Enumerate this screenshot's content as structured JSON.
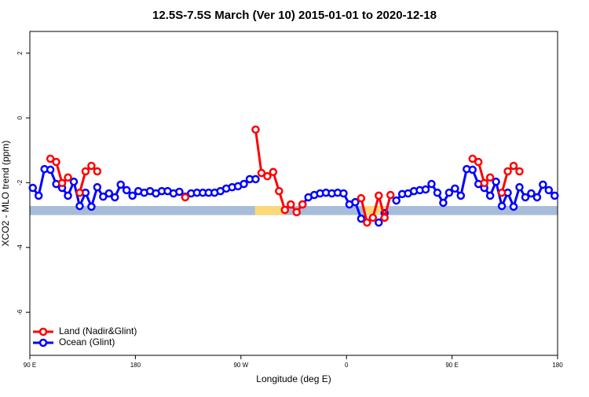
{
  "chart_data": {
    "type": "line",
    "title": "12.5S-7.5S March (Ver 10)   2015-01-01 to 2020-12-18",
    "xlabel": "Longitude (deg E)",
    "ylabel": "XCO2 - MLO trend (ppm)",
    "xlim": [
      90,
      540
    ],
    "ylim": [
      -7.33,
      2.67
    ],
    "xticks": [
      {
        "value": 90,
        "label": "90 E"
      },
      {
        "value": 180,
        "label": "180"
      },
      {
        "value": 270,
        "label": "90 W"
      },
      {
        "value": 360,
        "label": "0"
      },
      {
        "value": 450,
        "label": "90 E"
      },
      {
        "value": 540,
        "label": "180"
      }
    ],
    "yticks": [
      -6,
      -4,
      -2,
      0,
      2
    ],
    "legend": "bottom-left",
    "band": {
      "ylim": [
        -3.0,
        -2.72
      ],
      "color": "#a7bcd9",
      "land_color": "#fcd87a",
      "land_spans": [
        [
          282,
          307
        ],
        [
          375,
          393
        ]
      ]
    },
    "x": [
      92.5,
      97.5,
      102.5,
      107.5,
      112.5,
      117.5,
      122.5,
      127.5,
      132.5,
      137.5,
      142.5,
      147.5,
      152.5,
      157.5,
      162.5,
      167.5,
      172.5,
      177.5,
      182.5,
      187.5,
      192.5,
      197.5,
      202.5,
      207.5,
      212.5,
      217.5,
      222.5,
      227.5,
      232.5,
      237.5,
      242.5,
      247.5,
      252.5,
      257.5,
      262.5,
      267.5,
      272.5,
      277.5,
      282.5,
      287.5,
      292.5,
      297.5,
      302.5,
      307.5,
      312.5,
      317.5,
      322.5,
      327.5,
      332.5,
      337.5,
      342.5,
      347.5,
      352.5,
      357.5,
      362.5,
      367.5,
      372.5,
      377.5,
      382.5,
      387.5,
      392.5,
      397.5,
      402.5,
      407.5,
      412.5,
      417.5,
      422.5,
      427.5,
      432.5,
      437.5,
      442.5,
      447.5,
      452.5,
      457.5,
      462.5,
      467.5,
      472.5,
      477.5,
      482.5,
      487.5,
      492.5,
      497.5,
      502.5,
      507.5,
      512.5,
      517.5,
      522.5,
      527.5,
      532.5,
      537.5
    ],
    "series": [
      {
        "name": "Ocean (Glint)",
        "color": "#0000ff",
        "values": [
          -2.16,
          -2.4,
          -1.58,
          -1.6,
          -2.04,
          -2.16,
          -2.4,
          -1.97,
          -2.72,
          -2.31,
          -2.74,
          -2.14,
          -2.43,
          -2.33,
          -2.45,
          -2.06,
          -2.23,
          -2.4,
          -2.26,
          -2.31,
          -2.26,
          -2.33,
          -2.26,
          -2.26,
          -2.33,
          -2.28,
          -2.43,
          -2.33,
          -2.31,
          -2.31,
          -2.31,
          -2.31,
          -2.26,
          -2.18,
          -2.14,
          -2.11,
          -2.04,
          -1.89,
          -1.89,
          null,
          null,
          null,
          null,
          null,
          null,
          null,
          -2.67,
          -2.45,
          -2.38,
          -2.33,
          -2.31,
          -2.33,
          -2.31,
          -2.33,
          -2.67,
          -2.6,
          -3.11,
          null,
          null,
          -3.23,
          -2.94,
          null,
          -2.55,
          -2.35,
          -2.33,
          -2.26,
          -2.23,
          -2.21,
          -2.04,
          -2.31,
          -2.62,
          -2.31,
          -2.18,
          -2.4,
          -1.58,
          -1.6,
          -2.04,
          -2.16,
          -2.4,
          -1.97,
          -2.72,
          -2.31,
          -2.74,
          -2.14,
          -2.45,
          -2.33,
          -2.45,
          -2.06,
          -2.23,
          -2.4
        ]
      },
      {
        "name": "Land (Nadir&Glint)",
        "color": "#ff0000",
        "values": [
          null,
          null,
          null,
          -1.26,
          -1.36,
          -2.01,
          -1.84,
          null,
          -2.31,
          -1.65,
          -1.48,
          -1.65,
          null,
          null,
          null,
          null,
          null,
          null,
          null,
          null,
          null,
          null,
          null,
          null,
          null,
          null,
          -2.45,
          null,
          null,
          null,
          null,
          null,
          null,
          null,
          null,
          null,
          null,
          null,
          -0.36,
          -1.7,
          -1.8,
          -1.67,
          -2.26,
          -2.84,
          -2.67,
          -2.91,
          -2.67,
          null,
          null,
          null,
          null,
          null,
          null,
          null,
          null,
          null,
          -2.48,
          -3.23,
          -3.08,
          -2.4,
          -3.08,
          -2.38,
          null,
          null,
          null,
          null,
          null,
          null,
          null,
          null,
          null,
          null,
          null,
          null,
          null,
          -1.26,
          -1.36,
          -2.01,
          -1.84,
          null,
          -2.31,
          -1.65,
          -1.48,
          -1.65,
          null,
          null,
          null,
          null,
          null,
          null
        ]
      }
    ]
  }
}
